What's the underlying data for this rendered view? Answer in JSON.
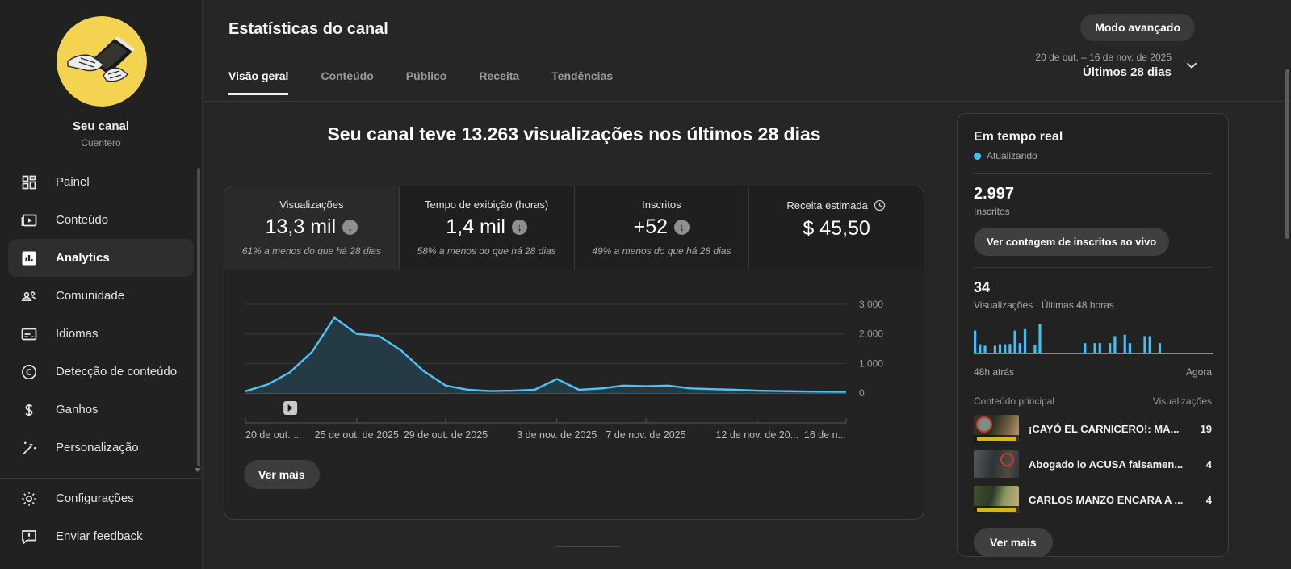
{
  "colors": {
    "accent_cyan": "#3fc1f5",
    "line_blue": "#4fc3f7",
    "avatar_yellow": "#f3d34f"
  },
  "sidebar": {
    "channel_name": "Seu canal",
    "channel_handle": "Cuentero",
    "items": [
      {
        "label": "Painel",
        "icon": "dashboard-icon",
        "active": false
      },
      {
        "label": "Conteúdo",
        "icon": "content-icon",
        "active": false
      },
      {
        "label": "Analytics",
        "icon": "analytics-icon",
        "active": true
      },
      {
        "label": "Comunidade",
        "icon": "community-icon",
        "active": false
      },
      {
        "label": "Idiomas",
        "icon": "subtitles-icon",
        "active": false
      },
      {
        "label": "Detecção de conteúdo",
        "icon": "copyright-icon",
        "active": false
      },
      {
        "label": "Ganhos",
        "icon": "earnings-icon",
        "active": false
      },
      {
        "label": "Personalização",
        "icon": "customization-icon",
        "active": false
      }
    ],
    "footer_items": [
      {
        "label": "Configurações",
        "icon": "gear-icon"
      },
      {
        "label": "Enviar feedback",
        "icon": "feedback-icon"
      }
    ]
  },
  "header": {
    "title": "Estatísticas do canal",
    "tabs": [
      {
        "label": "Visão geral",
        "active": true
      },
      {
        "label": "Conteúdo",
        "active": false
      },
      {
        "label": "Público",
        "active": false
      },
      {
        "label": "Receita",
        "active": false
      },
      {
        "label": "Tendências",
        "active": false
      }
    ],
    "advanced_mode_label": "Modo avançado",
    "date_range": "20 de out. – 16 de nov. de 2025",
    "date_preset": "Últimos 28 dias"
  },
  "overview": {
    "headline": "Seu canal teve 13.263 visualizações nos últimos 28 dias",
    "cards": [
      {
        "label": "Visualizações",
        "value": "13,3 mil",
        "trend": "down",
        "delta": "61% a menos do que há 28 dias",
        "selected": true
      },
      {
        "label": "Tempo de exibição (horas)",
        "value": "1,4 mil",
        "trend": "down",
        "delta": "58% a menos do que há 28 dias",
        "selected": false
      },
      {
        "label": "Inscritos",
        "value": "+52",
        "trend": "down",
        "delta": "49% a menos do que há 28 dias",
        "selected": false
      },
      {
        "label": "Receita estimada",
        "value": "$ 45,50",
        "info": "clock",
        "selected": false
      }
    ],
    "see_more_label": "Ver mais"
  },
  "chart_data": [
    {
      "type": "area",
      "title": "Visualizações diárias, 20 de out. – 16 de nov. de 2025",
      "values": [
        60,
        290,
        700,
        1400,
        2550,
        2000,
        1930,
        1440,
        750,
        250,
        110,
        65,
        80,
        110,
        475,
        110,
        155,
        250,
        230,
        250,
        155,
        130,
        110,
        80,
        65,
        55,
        45,
        40
      ],
      "x_tick_labels": [
        "20 de out. ...",
        "25 de out. de 2025",
        "29 de out. de 2025",
        "3 de nov. de 2025",
        "7 de nov. de 2025",
        "12 de nov. de 20...",
        "16 de n..."
      ],
      "x_tick_day_index": [
        0,
        5,
        9,
        14,
        18,
        23,
        27
      ],
      "ylim": [
        0,
        3000
      ],
      "y_tick_labels": [
        "3.000",
        "2.000",
        "1.000",
        "0"
      ],
      "y_tick_values": [
        3000,
        2000,
        1000,
        0
      ],
      "grid": true,
      "legend": "none",
      "video_marker_day_index": 2
    },
    {
      "type": "bar",
      "title": "Visualizações · Últimas 48 horas",
      "values": [
        76,
        29,
        24,
        0,
        24,
        29,
        29,
        30,
        76,
        33,
        81,
        0,
        27,
        100,
        0,
        0,
        0,
        0,
        0,
        0,
        0,
        0,
        33,
        0,
        33,
        33,
        0,
        33,
        57,
        0,
        62,
        33,
        0,
        0,
        57,
        57,
        0,
        33,
        0,
        0,
        0,
        0,
        0,
        0,
        0,
        0,
        0,
        0
      ],
      "x_range": [
        "48h atrás",
        "Agora"
      ],
      "ylim": [
        0,
        100
      ]
    }
  ],
  "realtime": {
    "title": "Em tempo real",
    "status": "Atualizando",
    "subscribers": "2.997",
    "subscribers_label": "Inscritos",
    "live_count_button": "Ver contagem de inscritos ao vivo",
    "views_value": "34",
    "views_label": "Visualizações · Últimas 48 horas",
    "spark_left": "48h atrás",
    "spark_right": "Agora",
    "list_header_left": "Conteúdo principal",
    "list_header_right": "Visualizações",
    "videos": [
      {
        "title": "¡CAYÓ EL CARNICERO!: MA...",
        "views": "19"
      },
      {
        "title": "Abogado lo ACUSA falsamen...",
        "views": "4"
      },
      {
        "title": "CARLOS MANZO ENCARA A ...",
        "views": "4"
      }
    ],
    "see_more_label": "Ver mais"
  }
}
